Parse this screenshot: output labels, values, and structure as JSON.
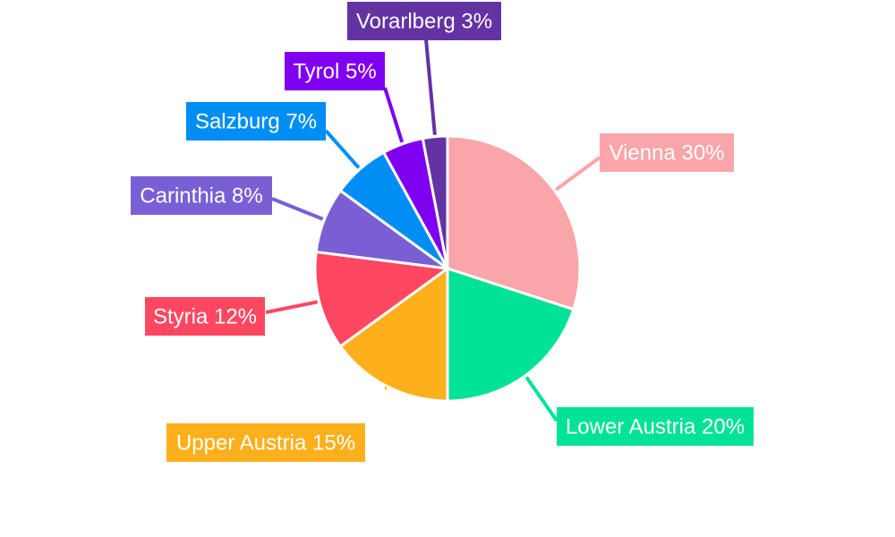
{
  "chart_data": {
    "type": "pie",
    "title": "",
    "slices": [
      {
        "label": "Vienna",
        "value": 30,
        "color": "#F9A5A9"
      },
      {
        "label": "Lower Austria",
        "value": 20,
        "color": "#00E296"
      },
      {
        "label": "Upper Austria",
        "value": 15,
        "color": "#FDB01C"
      },
      {
        "label": "Styria",
        "value": 12,
        "color": "#FF4762"
      },
      {
        "label": "Carinthia",
        "value": 8,
        "color": "#7A5FD4"
      },
      {
        "label": "Salzburg",
        "value": 7,
        "color": "#008EF5"
      },
      {
        "label": "Tyrol",
        "value": 5,
        "color": "#7F00F1"
      },
      {
        "label": "Vorarlberg",
        "value": 3,
        "color": "#6433A3"
      }
    ],
    "data_labels": [
      "Vienna 30%",
      "Lower Austria 20%",
      "Upper Austria 15%",
      "Styria 12%",
      "Carinthia 8%",
      "Salzburg 7%",
      "Tyrol 5%",
      "Vorarlberg 3%"
    ],
    "legend": "none",
    "start_angle": "12 o'clock",
    "direction": "clockwise"
  }
}
